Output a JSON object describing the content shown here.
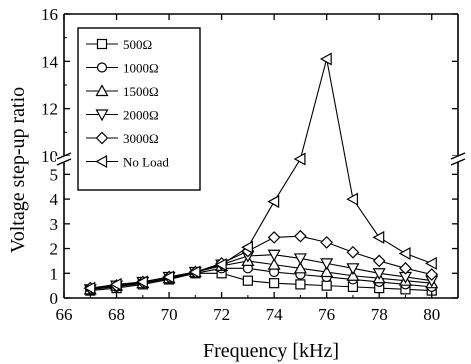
{
  "chart_data": {
    "type": "line",
    "xlabel": "Frequency [kHz]",
    "ylabel": "Voltage step-up ratio",
    "xlim": [
      66,
      81
    ],
    "ylim": [
      0,
      16
    ],
    "y_axis_broken": true,
    "y_break_between": [
      5.5,
      10
    ],
    "x_ticks": [
      66,
      68,
      70,
      72,
      74,
      76,
      78,
      80
    ],
    "x_tick_labels": [
      "66",
      "68",
      "70",
      "72",
      "74",
      "76",
      "78",
      "80"
    ],
    "y_ticks": [
      0,
      1,
      2,
      3,
      4,
      5,
      10,
      12,
      14,
      16
    ],
    "y_tick_labels": [
      "0",
      "1",
      "2",
      "3",
      "4",
      "5",
      "10",
      "12",
      "14",
      "16"
    ],
    "grid": false,
    "legend_position": "top-left",
    "series": [
      {
        "name": "500Ω",
        "marker": "square",
        "x": [
          67,
          68,
          69,
          70,
          71,
          72,
          73,
          74,
          75,
          76,
          77,
          78,
          79,
          80
        ],
        "y": [
          0.3,
          0.4,
          0.55,
          0.75,
          1.0,
          1.0,
          0.7,
          0.6,
          0.55,
          0.5,
          0.45,
          0.4,
          0.35,
          0.3
        ]
      },
      {
        "name": "1000Ω",
        "marker": "circle",
        "x": [
          67,
          68,
          69,
          70,
          71,
          72,
          73,
          74,
          75,
          76,
          77,
          78,
          79,
          80
        ],
        "y": [
          0.35,
          0.45,
          0.6,
          0.8,
          1.0,
          1.2,
          1.2,
          1.05,
          0.95,
          0.85,
          0.75,
          0.65,
          0.55,
          0.45
        ]
      },
      {
        "name": "1500Ω",
        "marker": "triangle-up",
        "x": [
          67,
          68,
          69,
          70,
          71,
          72,
          73,
          74,
          75,
          76,
          77,
          78,
          79,
          80
        ],
        "y": [
          0.35,
          0.5,
          0.6,
          0.8,
          1.05,
          1.3,
          1.5,
          1.35,
          1.2,
          1.05,
          0.9,
          0.8,
          0.7,
          0.6
        ]
      },
      {
        "name": "2000Ω",
        "marker": "triangle-down",
        "x": [
          67,
          68,
          69,
          70,
          71,
          72,
          73,
          74,
          75,
          76,
          77,
          78,
          79,
          80
        ],
        "y": [
          0.35,
          0.5,
          0.65,
          0.85,
          1.05,
          1.35,
          1.7,
          1.75,
          1.6,
          1.4,
          1.2,
          1.0,
          0.85,
          0.7
        ]
      },
      {
        "name": "3000Ω",
        "marker": "diamond",
        "x": [
          67,
          68,
          69,
          70,
          71,
          72,
          73,
          74,
          75,
          76,
          77,
          78,
          79,
          80
        ],
        "y": [
          0.4,
          0.5,
          0.65,
          0.85,
          1.05,
          1.4,
          1.9,
          2.45,
          2.5,
          2.25,
          1.85,
          1.5,
          1.2,
          0.95
        ]
      },
      {
        "name": "No Load",
        "marker": "triangle-left",
        "x": [
          67,
          68,
          69,
          70,
          71,
          72,
          73,
          74,
          75,
          76,
          77,
          78,
          79,
          80
        ],
        "y": [
          0.4,
          0.55,
          0.65,
          0.85,
          1.05,
          1.35,
          2.05,
          3.9,
          5.6,
          14.1,
          4.0,
          2.45,
          1.8,
          1.4
        ]
      }
    ]
  }
}
